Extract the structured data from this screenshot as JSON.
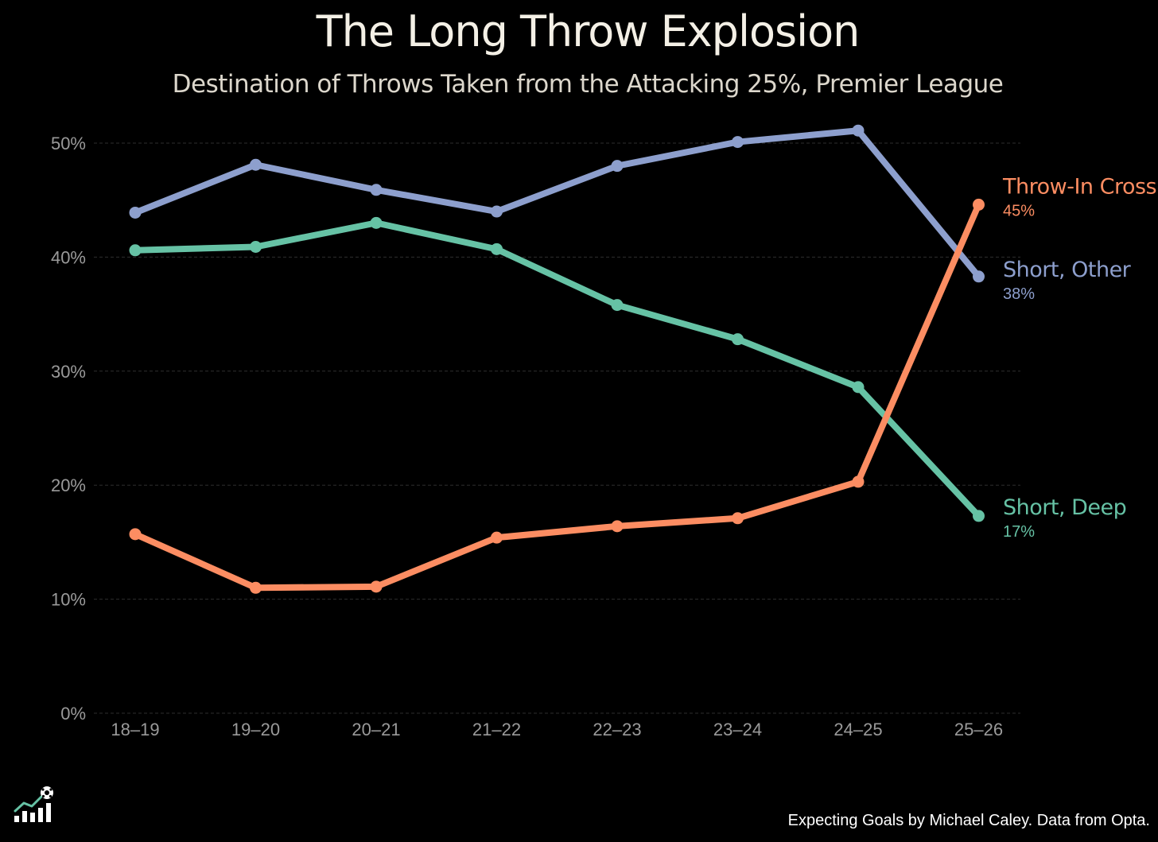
{
  "colors": {
    "background": "#000000",
    "grid": "#2e2e2e",
    "tick": "#9a9a9a"
  },
  "icons": {
    "logo": "bar-chart-football-logo-icon"
  },
  "caption": "Expecting Goals by Michael Caley. Data from Opta.",
  "chart_data": {
    "type": "line",
    "title": "The Long Throw Explosion",
    "subtitle": "Destination of Throws Taken from the Attacking 25%, Premier League",
    "xlabel": "",
    "ylabel": "",
    "categories": [
      "18–19",
      "19–20",
      "20–21",
      "21–22",
      "22–23",
      "23–24",
      "24–25",
      "25–26"
    ],
    "ylim": [
      0,
      50
    ],
    "yticks": [
      0,
      10,
      20,
      30,
      40,
      50
    ],
    "ytick_labels": [
      "0%",
      "10%",
      "20%",
      "30%",
      "40%",
      "50%"
    ],
    "grid": true,
    "legend": "direct labels at line ends (right)",
    "series": [
      {
        "name": "Short, Other",
        "color": "#8d9fcd",
        "values": [
          43.9,
          48.1,
          45.9,
          44.0,
          48.0,
          50.1,
          51.1,
          38.3
        ],
        "end_label": "38%"
      },
      {
        "name": "Short, Deep",
        "color": "#66c2a5",
        "values": [
          40.6,
          40.9,
          43.0,
          40.7,
          35.8,
          32.8,
          28.6,
          17.3
        ],
        "end_label": "17%"
      },
      {
        "name": "Throw-In Cross",
        "color": "#fc8d62",
        "values": [
          15.7,
          11.0,
          11.1,
          15.4,
          16.4,
          17.1,
          20.3,
          44.6
        ],
        "end_label": "45%"
      }
    ]
  }
}
